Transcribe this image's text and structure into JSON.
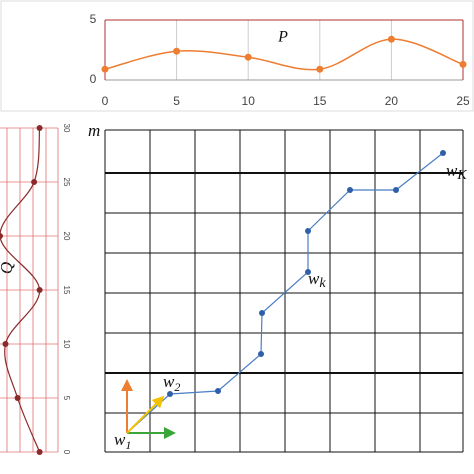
{
  "chart_data": [
    {
      "type": "line",
      "title": "P",
      "color": "#ed7d31",
      "x": [
        0,
        5,
        10,
        15,
        20,
        25
      ],
      "values": [
        0.9,
        2.4,
        1.9,
        0.9,
        3.4,
        1.3
      ],
      "xlim": [
        0,
        25
      ],
      "xticks": [
        0,
        5,
        10,
        15,
        20,
        25
      ],
      "ylim": [
        0,
        5
      ],
      "yticks": [
        0,
        5
      ],
      "grid": true
    },
    {
      "type": "line",
      "title": "Q",
      "color": "#8b2a2a",
      "orientation": "vertical",
      "x": [
        0,
        5,
        10,
        15,
        20,
        25,
        30
      ],
      "values": [
        3.6,
        1.6,
        0.5,
        3.6,
        0,
        3.1,
        3.6
      ],
      "xlim": [
        0,
        30
      ],
      "xticks": [
        0,
        5,
        10,
        15,
        20,
        25,
        30
      ],
      "ylim": [
        0,
        4
      ],
      "grid": true
    }
  ],
  "grid": {
    "axis_label": "m",
    "labels": [
      {
        "base": "w",
        "sub": "1"
      },
      {
        "base": "w",
        "sub": "2"
      },
      {
        "base": "w",
        "sub": "k"
      },
      {
        "base": "w",
        "sub": "K"
      }
    ]
  }
}
